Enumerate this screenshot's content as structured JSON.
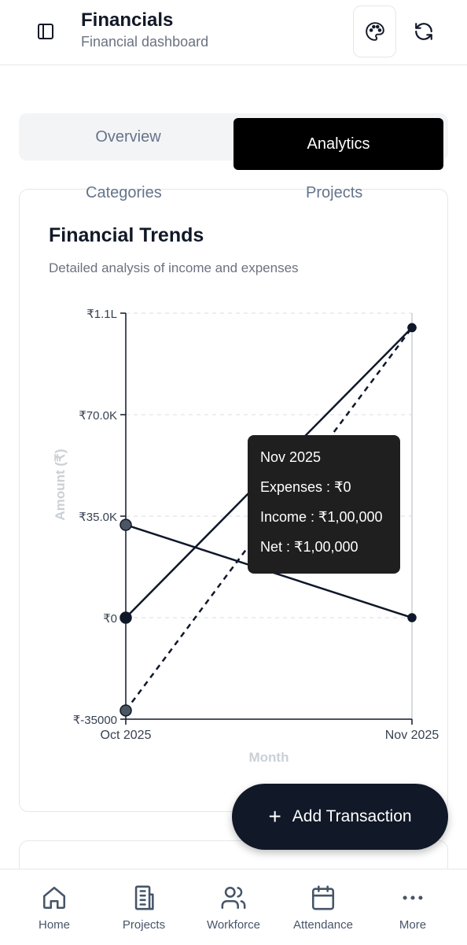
{
  "header": {
    "title": "Financials",
    "subtitle": "Financial dashboard",
    "icons": [
      "sidebar-toggle-icon",
      "palette-icon",
      "refresh-icon"
    ]
  },
  "tabs": [
    {
      "label": "Overview",
      "active": false
    },
    {
      "label": "Analytics",
      "active": true
    }
  ],
  "subtabs": [
    {
      "label": "Categories"
    },
    {
      "label": "Projects"
    }
  ],
  "card": {
    "title": "Financial Trends",
    "description": "Detailed analysis of income and expenses"
  },
  "chart_data": {
    "type": "line",
    "xlabel": "Month",
    "ylabel": "Amount (₹)",
    "categories": [
      "Oct 2025",
      "Nov 2025"
    ],
    "y_ticks": [
      "₹-35000",
      "₹0",
      "₹35.0K",
      "₹70.0K",
      "₹1.1L"
    ],
    "y_tick_values": [
      -35000,
      0,
      35000,
      70000,
      105000
    ],
    "ylim": [
      -35000,
      105000
    ],
    "grid": "horizontal-dashed",
    "series": [
      {
        "values": [
          32000,
          0
        ],
        "style": "solid",
        "color": "#0f172a"
      },
      {
        "values": [
          0,
          100000
        ],
        "style": "solid",
        "color": "#0f172a"
      },
      {
        "values": [
          -32000,
          100000
        ],
        "style": "dashed",
        "color": "#0f172a"
      }
    ]
  },
  "tooltip": {
    "title": "Nov 2025",
    "expenses": "Expenses : ₹0",
    "income": "Income : ₹1,00,000",
    "net": "Net : ₹1,00,000"
  },
  "fab": {
    "label": "Add Transaction",
    "icon": "plus-icon"
  },
  "bottom_nav": [
    {
      "label": "Home",
      "icon": "home-icon"
    },
    {
      "label": "Projects",
      "icon": "building-icon"
    },
    {
      "label": "Workforce",
      "icon": "users-icon"
    },
    {
      "label": "Attendance",
      "icon": "calendar-icon"
    },
    {
      "label": "More",
      "icon": "more-icon"
    }
  ]
}
